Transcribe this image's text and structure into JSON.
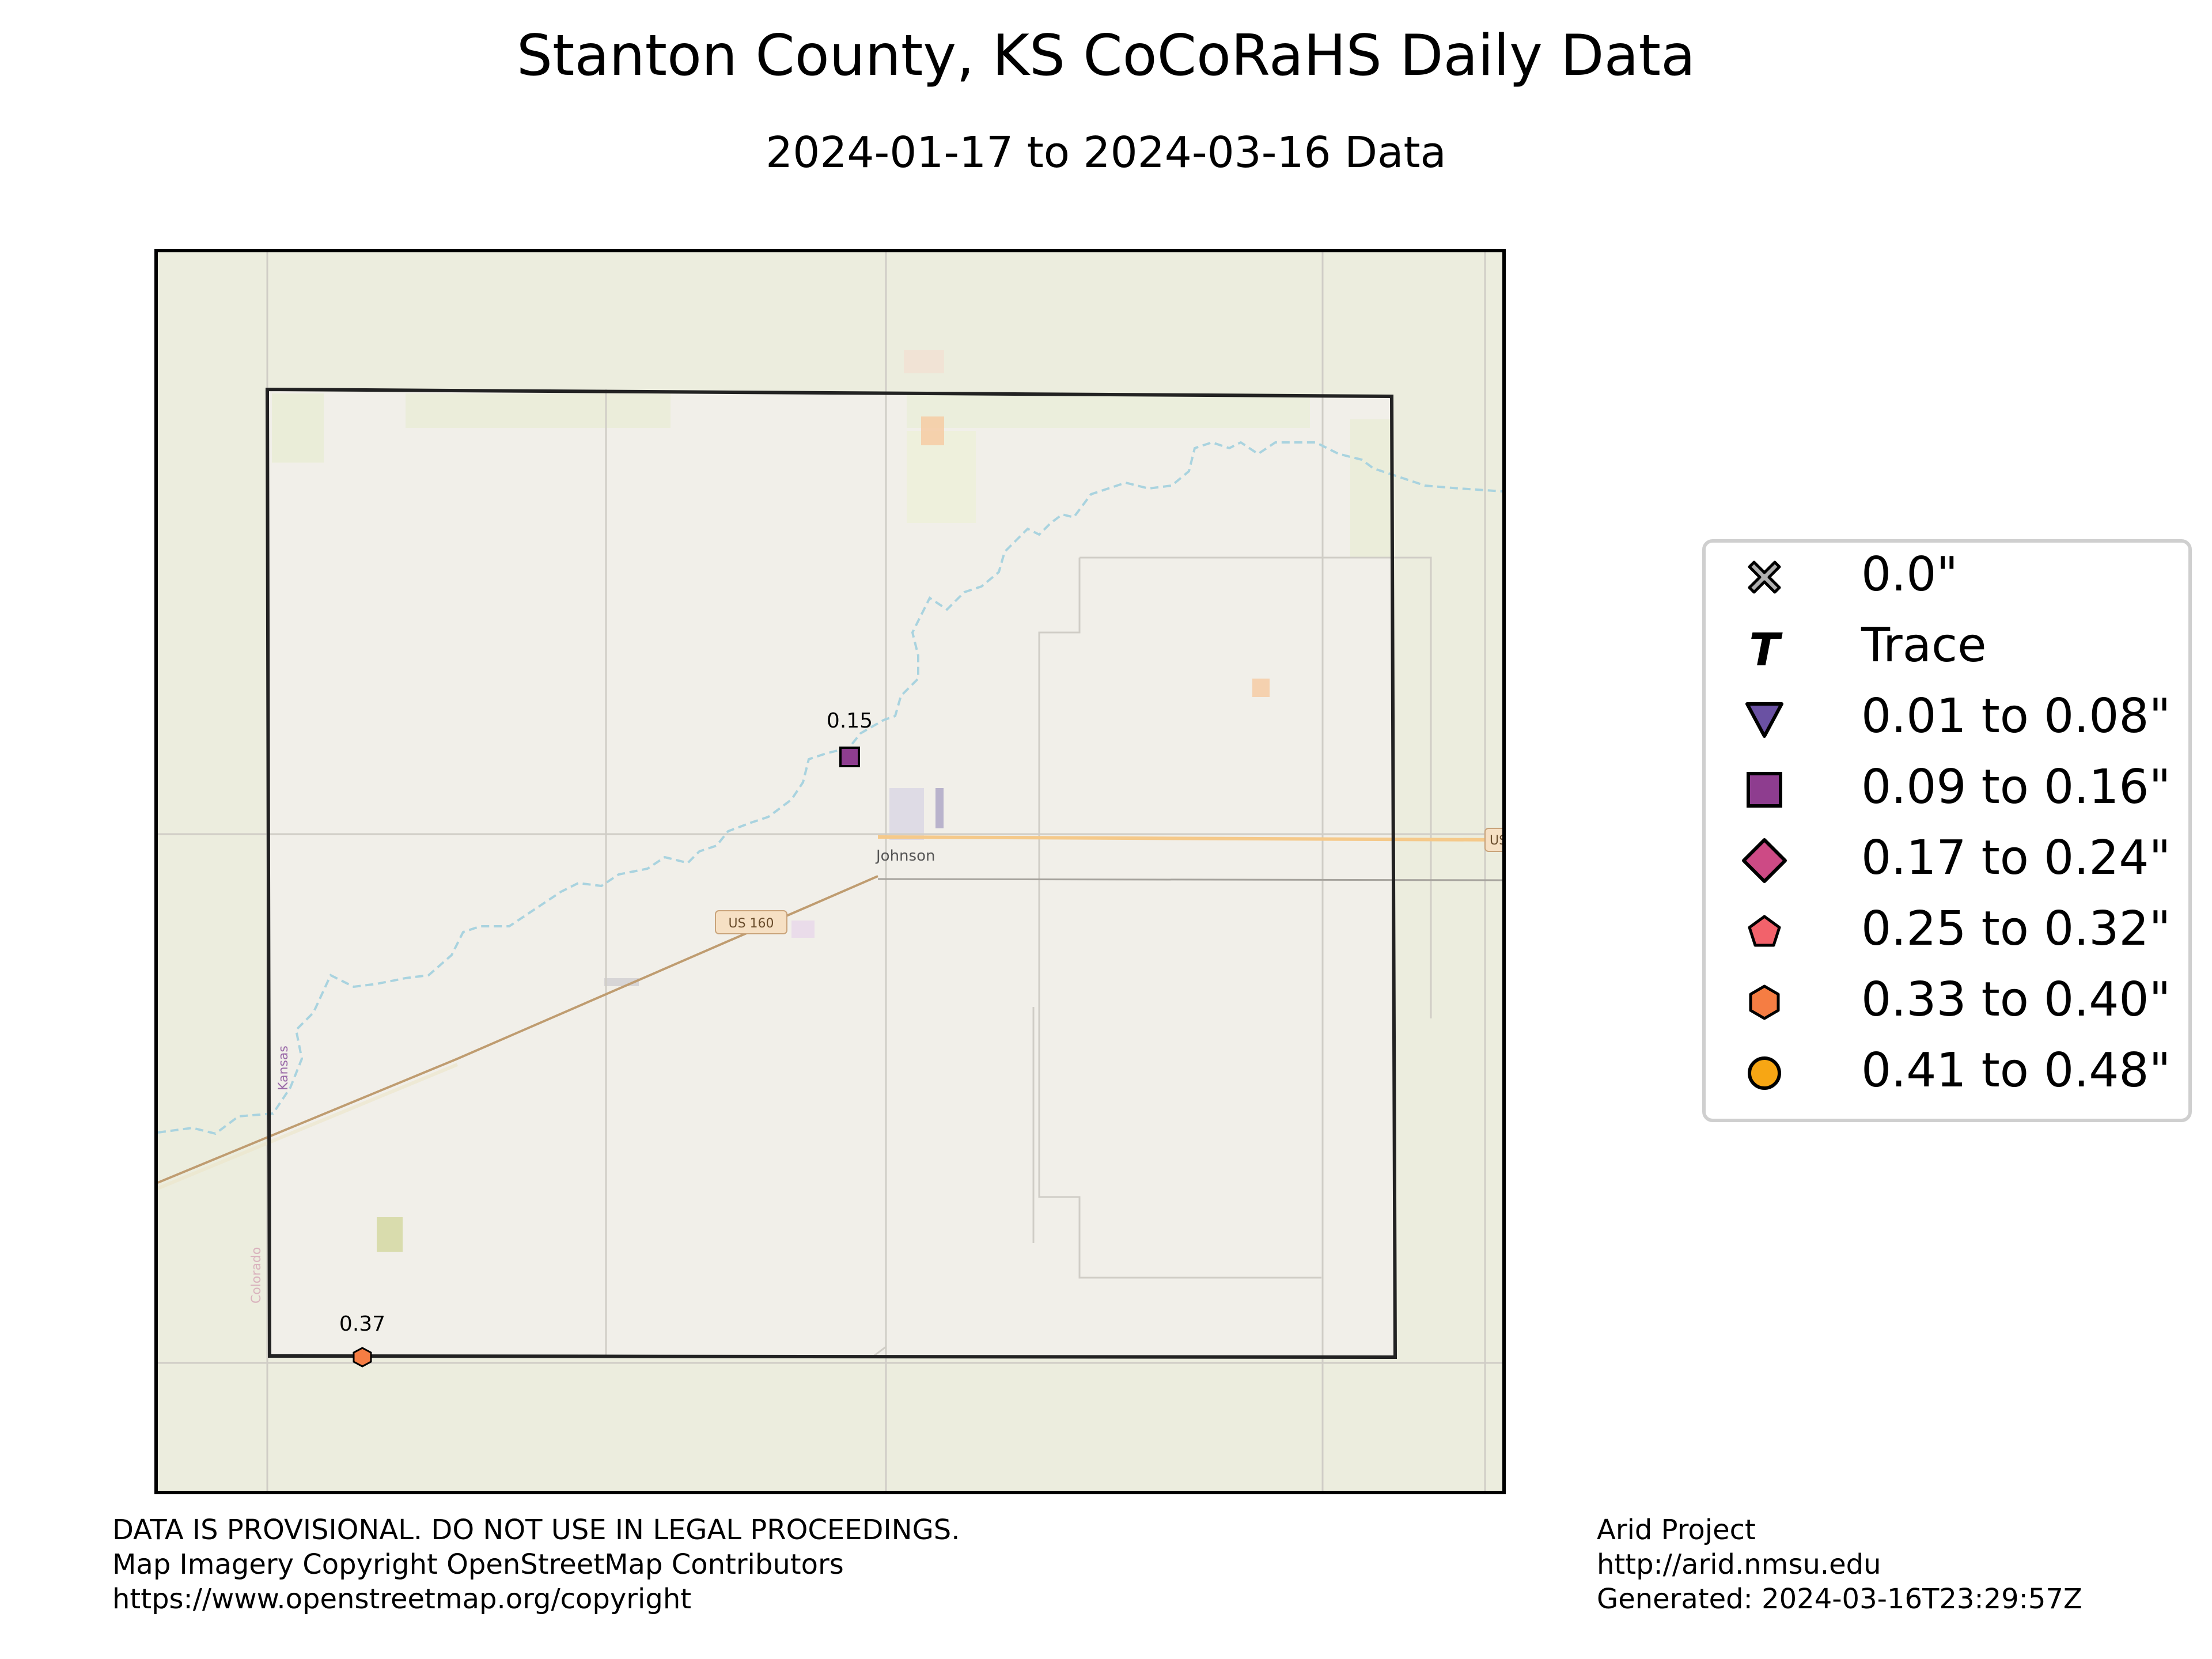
{
  "title": "Stanton County, KS CoCoRaHS Daily Data",
  "subtitle": "2024-01-17 to 2024-03-16 Data",
  "colors": {
    "county_border": "#222222",
    "map_outside": "#ecedde",
    "map_inside": "#f1efe9",
    "river": "#a9d3df",
    "highway": "#bf9c70",
    "primary_road": "#f5c98a",
    "road": "#c9c6c0"
  },
  "map": {
    "place_labels": [
      "Johnson",
      "Kansas",
      "Colorado"
    ],
    "road_shields": [
      "US 160",
      "US"
    ],
    "stations": [
      {
        "label": "0.15",
        "value": 0.15,
        "symbol": "square",
        "color": "#8e3d8f"
      },
      {
        "label": "0.37",
        "value": 0.37,
        "symbol": "hexagon",
        "color": "#f57d43"
      }
    ]
  },
  "legend": {
    "items": [
      {
        "symbol": "x",
        "color": "#b0b0b0",
        "label": "0.0\""
      },
      {
        "symbol": "T",
        "color": "#000000",
        "label": "Trace"
      },
      {
        "symbol": "triangle-down",
        "color": "#6a51a3",
        "label": "0.01 to 0.08\""
      },
      {
        "symbol": "square",
        "color": "#8e3d8f",
        "label": "0.09 to 0.16\""
      },
      {
        "symbol": "diamond",
        "color": "#cd4a85",
        "label": "0.17 to 0.24\""
      },
      {
        "symbol": "pentagon",
        "color": "#f2626b",
        "label": "0.25 to 0.32\""
      },
      {
        "symbol": "hexagon",
        "color": "#f57d43",
        "label": "0.33 to 0.40\""
      },
      {
        "symbol": "circle",
        "color": "#f7a614",
        "label": "0.41 to 0.48\""
      }
    ]
  },
  "footer": {
    "left": [
      "DATA IS PROVISIONAL. DO NOT USE IN LEGAL PROCEEDINGS.",
      "Map Imagery Copyright OpenStreetMap Contributors",
      "https://www.openstreetmap.org/copyright"
    ],
    "right": [
      "Arid Project",
      "http://arid.nmsu.edu",
      "Generated: 2024-03-16T23:29:57Z"
    ]
  }
}
